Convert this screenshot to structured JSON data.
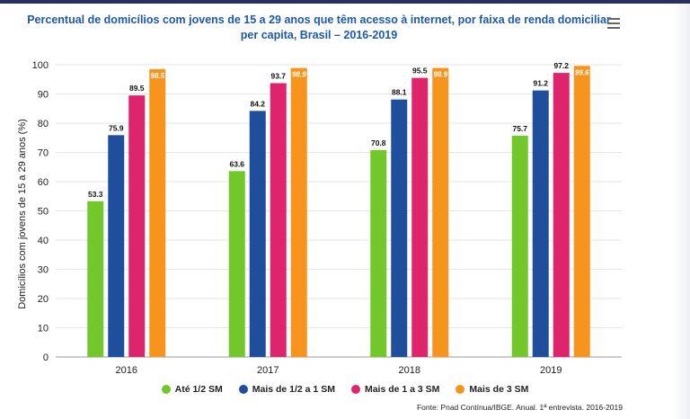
{
  "chart_data": {
    "type": "bar",
    "title": "Percentual de domicílios com jovens de 15 a 29 anos que têm acesso à internet, por faixa de renda domiciliar per capita, Brasil – 2016-2019",
    "ylabel": "Domicílios com jovens de 15 a 29 anos (%)",
    "xlabel": "",
    "ylim": [
      0,
      100
    ],
    "yticks": [
      0,
      10,
      20,
      30,
      40,
      50,
      60,
      70,
      80,
      90,
      100
    ],
    "categories": [
      "2016",
      "2017",
      "2018",
      "2019"
    ],
    "series": [
      {
        "name": "Até 1/2 SM",
        "color": "#72c72a",
        "values": [
          53.3,
          63.6,
          70.8,
          75.7
        ]
      },
      {
        "name": "Mais de 1/2 a 1 SM",
        "color": "#1e4e9c",
        "values": [
          75.9,
          84.2,
          88.1,
          91.2
        ]
      },
      {
        "name": "Mais de 1 a 3 SM",
        "color": "#de246b",
        "values": [
          89.5,
          93.7,
          95.5,
          97.2
        ]
      },
      {
        "name": "Mais de 3 SM",
        "color": "#f7941d",
        "values": [
          98.5,
          98.9,
          98.9,
          99.6
        ]
      }
    ],
    "grid": true,
    "legend_position": "bottom"
  },
  "source": "Fonte: Pnad Contínua/IBGE. Anual. 1ª entrevista. 2016-2019",
  "menu_icon": "hamburger-menu-icon"
}
